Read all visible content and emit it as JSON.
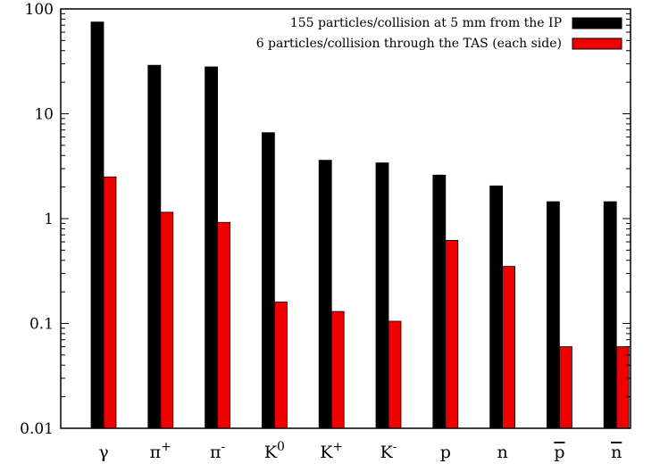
{
  "chart_data": {
    "type": "bar",
    "title": "",
    "xlabel": "",
    "ylabel": "",
    "y_scale": "log",
    "ylim": [
      0.01,
      100
    ],
    "y_ticks": [
      "0.01",
      "0.1",
      "1",
      "10",
      "100"
    ],
    "y_tick_values": [
      0.01,
      0.1,
      1,
      10,
      100
    ],
    "grid": false,
    "legend_position": "top-right",
    "categories": [
      {
        "base": "γ",
        "sup": "",
        "bar": false
      },
      {
        "base": "π",
        "sup": "+",
        "bar": false
      },
      {
        "base": "π",
        "sup": "-",
        "bar": false
      },
      {
        "base": "K",
        "sup": "0",
        "bar": false
      },
      {
        "base": "K",
        "sup": "+",
        "bar": false
      },
      {
        "base": "K",
        "sup": "-",
        "bar": false
      },
      {
        "base": "p",
        "sup": "",
        "bar": false
      },
      {
        "base": "n",
        "sup": "",
        "bar": false
      },
      {
        "base": "p",
        "sup": "",
        "bar": true
      },
      {
        "base": "n",
        "sup": "",
        "bar": true
      }
    ],
    "series": [
      {
        "name": "155 particles/collision at 5 mm from the IP",
        "color": "#000000",
        "values": [
          75,
          29,
          28,
          6.6,
          3.6,
          3.4,
          2.6,
          2.05,
          1.45,
          1.45
        ]
      },
      {
        "name": "6 particles/collision through the TAS (each side)",
        "color": "#ee0000",
        "values": [
          2.5,
          1.15,
          0.92,
          0.16,
          0.13,
          0.105,
          0.62,
          0.35,
          0.06,
          0.06
        ]
      }
    ]
  }
}
